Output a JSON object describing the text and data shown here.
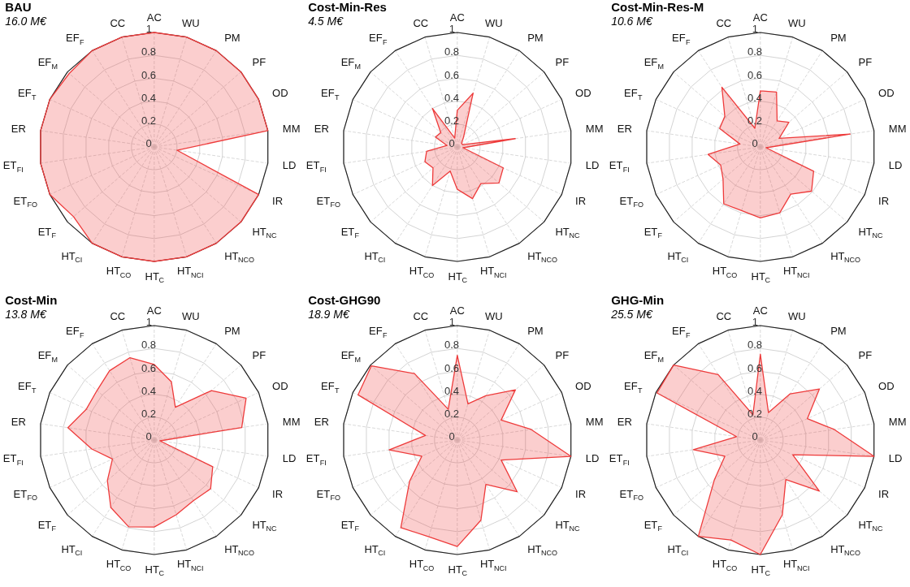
{
  "chart_data": [
    {
      "type": "radar",
      "title": "BAU",
      "subtitle": "16.0 M€",
      "categories": [
        "AC",
        "WU",
        "PM",
        "PF",
        "OD",
        "MM",
        "LD",
        "IR",
        "HT$_{NC}$",
        "HT$_{NCO}$",
        "HT$_{NCI}$",
        "HT$_{C}$",
        "HT$_{CO}$",
        "HT$_{CI}$",
        "ET$_{F}$",
        "ET$_{FO}$",
        "ET$_{FI}$",
        "ER",
        "EF$_{T}$",
        "EF$_{M}$",
        "EF$_{F}$",
        "CC"
      ],
      "ylim": [
        0,
        1
      ],
      "yticks": [
        0,
        0.2,
        0.4,
        0.6,
        0.8,
        1
      ],
      "grid": true,
      "marker": "none",
      "series": [
        {
          "color": "#ee3b3b",
          "values": [
            1,
            1,
            1,
            1,
            1,
            1,
            0.2,
            1,
            1,
            1,
            1,
            1,
            1,
            1,
            0.93,
            1,
            1,
            1,
            1,
            0.98,
            1,
            1
          ]
        }
      ]
    },
    {
      "type": "radar",
      "title": "Cost-Min-Res",
      "subtitle": "4.5 M€",
      "categories": [
        "AC",
        "WU",
        "PM",
        "PF",
        "OD",
        "MM",
        "LD",
        "IR",
        "HT$_{NC}$",
        "HT$_{NCO}$",
        "HT$_{NCI}$",
        "HT$_{C}$",
        "HT$_{CO}$",
        "HT$_{CI}$",
        "ET$_{F}$",
        "ET$_{FO}$",
        "ET$_{FI}$",
        "ER",
        "EF$_{T}$",
        "EF$_{M}$",
        "EF$_{F}$",
        "CC"
      ],
      "ylim": [
        0,
        1
      ],
      "yticks": [
        0,
        0.2,
        0.4,
        0.6,
        0.8,
        1
      ],
      "grid": true,
      "marker": "none",
      "series": [
        {
          "color": "#ee3b3b",
          "values": [
            0.32,
            0.49,
            0.1,
            0.05,
            0.05,
            0.51,
            0.05,
            0.44,
            0.48,
            0.38,
            0.47,
            0.37,
            0.22,
            0.4,
            0.28,
            0.31,
            0.27,
            0.09,
            0.21,
            0.19,
            0.4,
            0.08
          ]
        }
      ]
    },
    {
      "type": "radar",
      "title": "Cost-Min-Res-M",
      "subtitle": "10.6 M€",
      "categories": [
        "AC",
        "WU",
        "PM",
        "PF",
        "OD",
        "MM",
        "LD",
        "IR",
        "HT$_{NC}$",
        "HT$_{NCO}$",
        "HT$_{NCI}$",
        "HT$_{C}$",
        "HT$_{CO}$",
        "HT$_{CI}$",
        "ET$_{F}$",
        "ET$_{FO}$",
        "ET$_{FI}$",
        "ER",
        "EF$_{T}$",
        "EF$_{M}$",
        "EF$_{F}$",
        "CC"
      ],
      "ylim": [
        0,
        1
      ],
      "yticks": [
        0,
        0.2,
        0.4,
        0.6,
        0.8,
        1
      ],
      "grid": true,
      "marker": "none",
      "series": [
        {
          "color": "#ee3b3b",
          "values": [
            0.49,
            0.5,
            0.27,
            0.33,
            0.18,
            0.79,
            0.05,
            0.51,
            0.59,
            0.49,
            0.6,
            0.62,
            0.58,
            0.59,
            0.43,
            0.38,
            0.46,
            0.18,
            0.39,
            0.41,
            0.62,
            0.17
          ]
        }
      ]
    },
    {
      "type": "radar",
      "title": "Cost-Min",
      "subtitle": "13.8 M€",
      "categories": [
        "AC",
        "WU",
        "PM",
        "PF",
        "OD",
        "MM",
        "LD",
        "IR",
        "HT$_{NC}$",
        "HT$_{NCO}$",
        "HT$_{NCI}$",
        "HT$_{C}$",
        "HT$_{CO}$",
        "HT$_{CI}$",
        "ET$_{F}$",
        "ET$_{FO}$",
        "ET$_{FI}$",
        "ER",
        "EF$_{T}$",
        "EF$_{M}$",
        "EF$_{F}$",
        "CC"
      ],
      "ylim": [
        0,
        1
      ],
      "yticks": [
        0,
        0.2,
        0.4,
        0.6,
        0.8,
        1
      ],
      "grid": true,
      "marker": "none",
      "series": [
        {
          "color": "#ee3b3b",
          "values": [
            0.66,
            0.53,
            0.34,
            0.66,
            0.88,
            0.77,
            0.05,
            0.56,
            0.65,
            0.63,
            0.68,
            0.76,
            0.79,
            0.7,
            0.54,
            0.4,
            0.55,
            0.76,
            0.65,
            0.66,
            0.72,
            0.75
          ]
        }
      ]
    },
    {
      "type": "radar",
      "title": "Cost-GHG90",
      "subtitle": "18.9 M€",
      "categories": [
        "AC",
        "WU",
        "PM",
        "PF",
        "OD",
        "MM",
        "LD",
        "IR",
        "HT$_{NC}$",
        "HT$_{NCO}$",
        "HT$_{NCI}$",
        "HT$_{C}$",
        "HT$_{CO}$",
        "HT$_{CI}$",
        "ET$_{F}$",
        "ET$_{FO}$",
        "ET$_{FI}$",
        "ER",
        "EF$_{T}$",
        "EF$_{M}$",
        "EF$_{F}$",
        "CC"
      ],
      "ylim": [
        0,
        1
      ],
      "yticks": [
        0,
        0.2,
        0.4,
        0.6,
        0.8,
        1
      ],
      "grid": true,
      "marker": "none",
      "series": [
        {
          "color": "#ee3b3b",
          "values": [
            0.74,
            0.33,
            0.46,
            0.67,
            0.42,
            0.65,
            1,
            0.42,
            0.69,
            0.46,
            0.73,
            0.93,
            0.88,
            0.91,
            0.55,
            0.34,
            0.6,
            0.28,
            0.95,
            0.99,
            0.69,
            0.28
          ]
        }
      ]
    },
    {
      "type": "radar",
      "title": "GHG-Min",
      "subtitle": "25.5 M€",
      "categories": [
        "AC",
        "WU",
        "PM",
        "PF",
        "OD",
        "MM",
        "LD",
        "IR",
        "HT$_{NC}$",
        "HT$_{NCO}$",
        "HT$_{NCI}$",
        "HT$_{C}$",
        "HT$_{CO}$",
        "HT$_{CI}$",
        "ET$_{F}$",
        "ET$_{FO}$",
        "ET$_{FI}$",
        "ER",
        "EF$_{T}$",
        "EF$_{M}$",
        "EF$_{F}$",
        "CC"
      ],
      "ylim": [
        0,
        1
      ],
      "yticks": [
        0,
        0.2,
        0.4,
        0.6,
        0.8,
        1
      ],
      "grid": true,
      "marker": "none",
      "series": [
        {
          "color": "#ee3b3b",
          "values": [
            0.75,
            0.25,
            0.48,
            0.68,
            0.45,
            0.65,
            1,
            0.31,
            0.68,
            0.41,
            0.68,
            1,
            0.91,
            1,
            0.53,
            0.34,
            0.59,
            0.21,
            0.99,
            1,
            0.68,
            0.23
          ]
        }
      ]
    }
  ]
}
